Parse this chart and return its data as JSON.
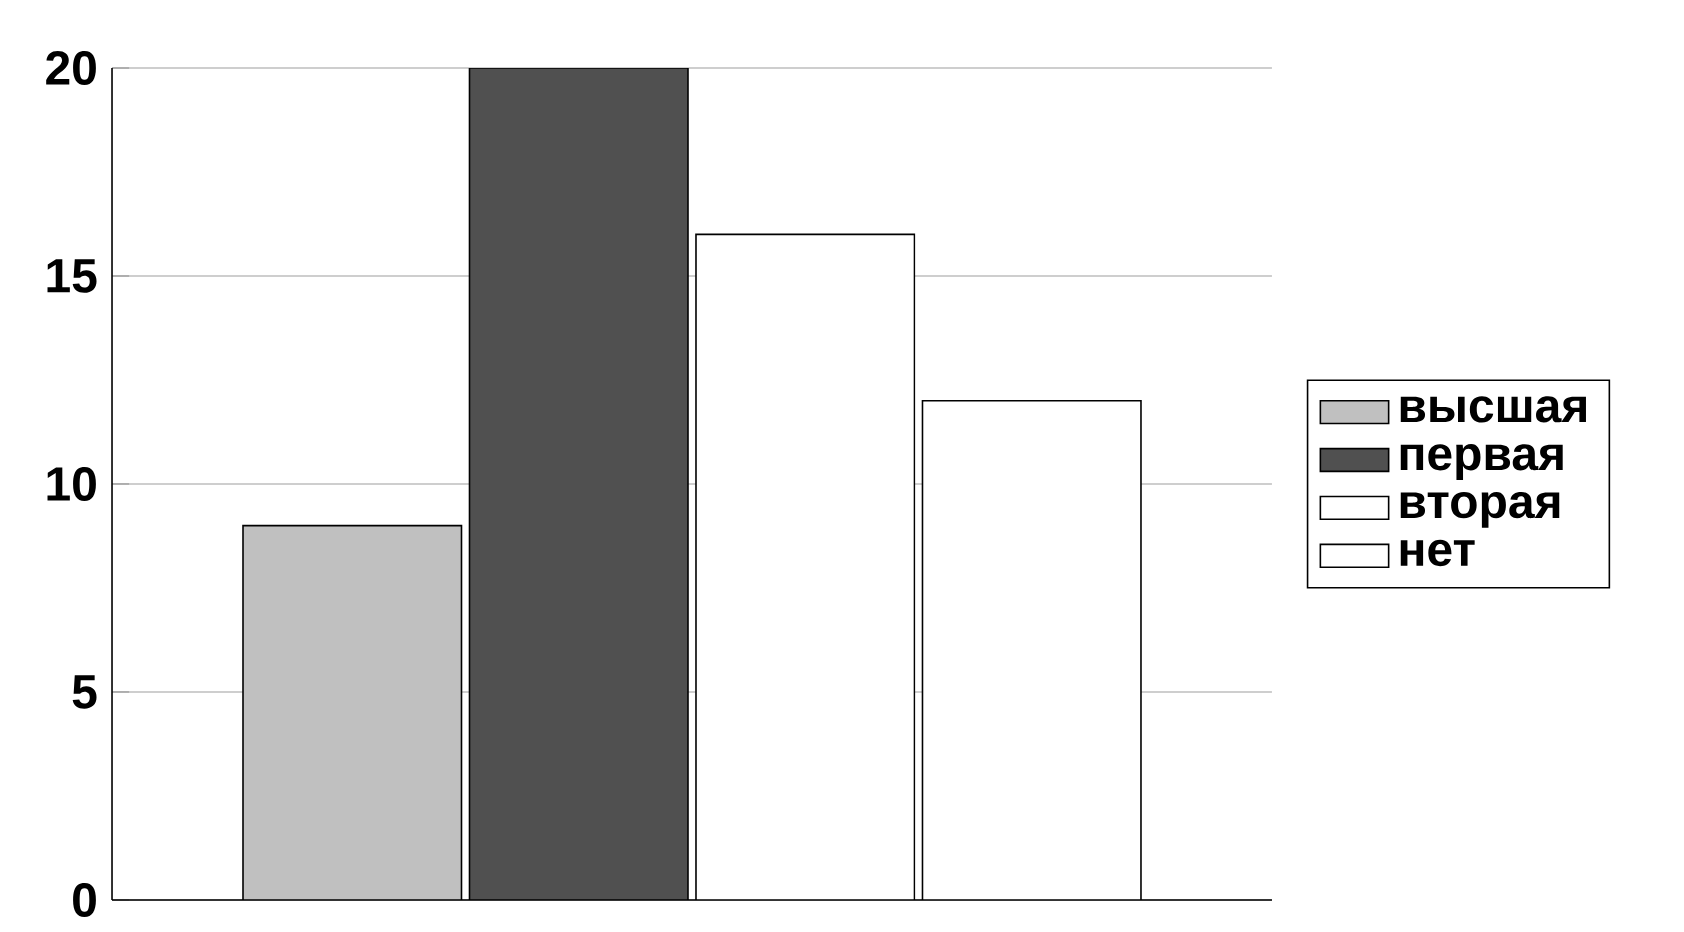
{
  "chart_data": {
    "type": "bar",
    "categories": [
      null
    ],
    "series": [
      {
        "name": "высшая",
        "color": "#c0c0c0",
        "values": [
          9
        ]
      },
      {
        "name": "первая",
        "color": "#505050",
        "values": [
          20
        ]
      },
      {
        "name": "вторая",
        "color": "#ffffff",
        "values": [
          16
        ]
      },
      {
        "name": "нет",
        "color": "#ffffff",
        "values": [
          12
        ]
      }
    ],
    "ylim": [
      0,
      20
    ],
    "yticks": [
      0,
      5,
      10,
      15,
      20
    ],
    "grid": "y",
    "legend": "right",
    "tick_labels": "y"
  }
}
